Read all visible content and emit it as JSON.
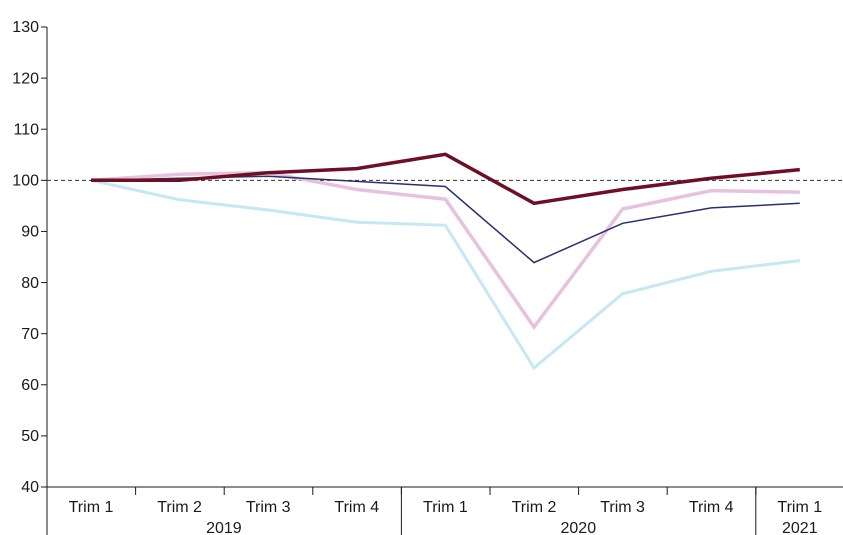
{
  "chart_data": {
    "type": "line",
    "title": "",
    "xlabel": "",
    "ylabel": "",
    "ylim": [
      40,
      130
    ],
    "yticks": [
      40,
      50,
      60,
      70,
      80,
      90,
      100,
      110,
      120,
      130
    ],
    "reference_line": 100,
    "grid": false,
    "legend": "none",
    "categories": [
      "Trim 1",
      "Trim 2",
      "Trim 3",
      "Trim 4",
      "Trim 1",
      "Trim 2",
      "Trim 3",
      "Trim 4",
      "Trim 1"
    ],
    "groups": [
      {
        "label": "2019",
        "start": 0,
        "end": 3
      },
      {
        "label": "2020",
        "start": 4,
        "end": 7
      },
      {
        "label": "2021",
        "start": 8,
        "end": 8
      }
    ],
    "series": [
      {
        "color": "#c5e8f4",
        "width": 3,
        "values": [
          100,
          96.2,
          94.2,
          91.8,
          91.2,
          63.3,
          77.8,
          82.2,
          84.3
        ]
      },
      {
        "color": "#e6c2df",
        "width": 3.5,
        "values": [
          100,
          101.2,
          101.5,
          98.2,
          96.3,
          71.3,
          94.4,
          98,
          97.7
        ]
      },
      {
        "color": "#2b2f6e",
        "width": 1.5,
        "values": [
          100,
          100.4,
          100.8,
          99.8,
          98.8,
          83.9,
          91.6,
          94.6,
          95.5
        ]
      },
      {
        "color": "#6e1025",
        "width": 3.5,
        "values": [
          100,
          100,
          101.5,
          102.3,
          105.1,
          95.5,
          98.2,
          100.4,
          102.1
        ]
      }
    ]
  }
}
